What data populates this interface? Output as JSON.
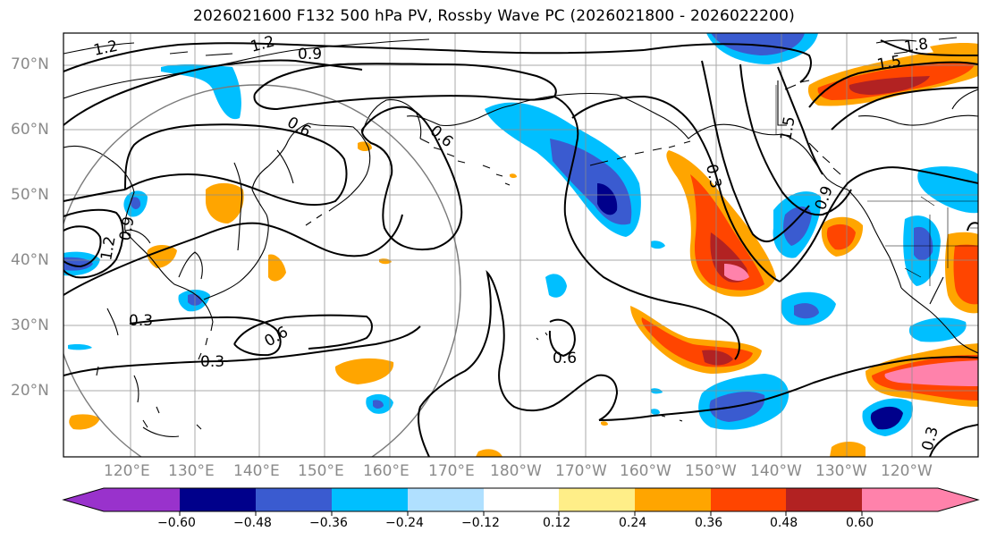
{
  "title": "2026021600 F132 500 hPa PV, Rossby Wave PC (2026021800 - 2026022200)",
  "lat_labels": [
    "70°N",
    "60°N",
    "50°N",
    "40°N",
    "30°N",
    "20°N"
  ],
  "lon_labels": [
    "120°E",
    "130°E",
    "140°E",
    "150°E",
    "160°E",
    "170°E",
    "180°W",
    "170°W",
    "160°W",
    "150°W",
    "140°W",
    "130°W",
    "120°W"
  ],
  "contour_labels": [
    "1.2",
    "1.2",
    "0.9",
    "0.6",
    "0.6",
    "0.9",
    "1.2",
    "0.3",
    "0.6",
    "0.3",
    "0.6",
    "1.5",
    "0.3",
    "0.9",
    "0.3",
    "1.8",
    "1.5"
  ],
  "colorbar": {
    "colors": [
      "#9932cc",
      "#00008b",
      "#3a5bd0",
      "#00bfff",
      "#b0e0ff",
      "#ffffff",
      "#ffee88",
      "#ffa500",
      "#ff4500",
      "#b22222",
      "#ff82ab"
    ],
    "tick_labels": [
      "−0.60",
      "−0.48",
      "−0.36",
      "−0.24",
      "−0.12",
      "0.12",
      "0.24",
      "0.36",
      "0.48",
      "0.60"
    ]
  },
  "colors": {
    "contour": "#000000",
    "grid": "#8c8c8c",
    "coast": "#000000",
    "circle": "#7a7a7a"
  }
}
